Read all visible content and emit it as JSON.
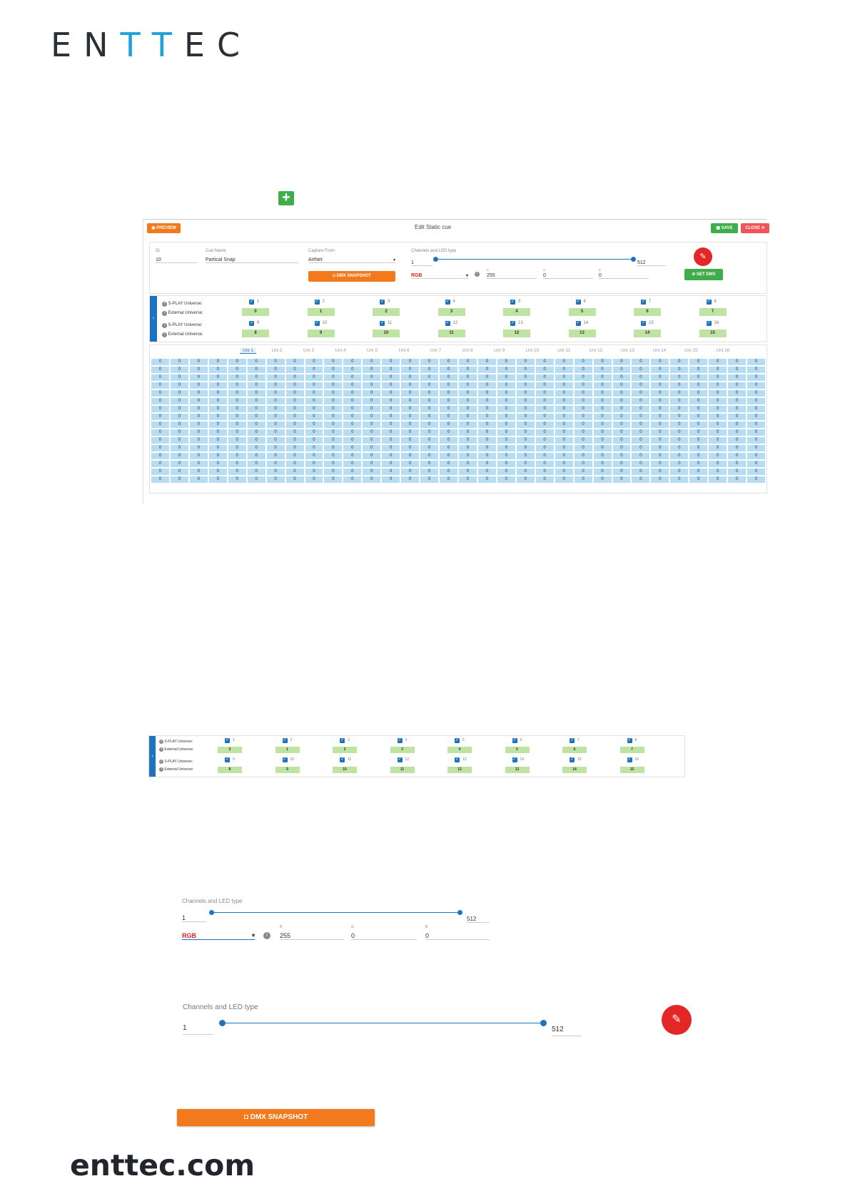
{
  "brand": {
    "logo_pre": "EN",
    "logo_mid": "TT",
    "logo_post": "EC",
    "footer": "enttec.com"
  },
  "add_button": {
    "icon": "plus-icon",
    "symbol": "+"
  },
  "editor": {
    "title": "Edit Static cue",
    "preview_label": "PREVIEW",
    "save_label": "SAVE",
    "close_label": "CLOSE",
    "fields": {
      "id_label": "ID",
      "id_value": "10",
      "name_label": "Cue Name",
      "name_value": "Partical Snap",
      "capture_label": "Capture From",
      "capture_value": "ArtNet",
      "channels_label": "Channels and LED type",
      "ch_min": "1",
      "ch_max": "512",
      "led_type": "RGB",
      "r_label": "R",
      "r_value": "255",
      "g_label": "G",
      "g_value": "0",
      "b_label": "B",
      "b_value": "0"
    },
    "snapshot_label": "DMX SNAPSHOT",
    "set_dmx_label": "SET DMX",
    "universe": {
      "splay_label": "S-PLAY Universe:",
      "external_label": "External Universe:",
      "checks_row1": [
        "1",
        "2",
        "3",
        "4",
        "5",
        "6",
        "7",
        "8"
      ],
      "ext_row1": [
        "0",
        "1",
        "2",
        "3",
        "4",
        "5",
        "6",
        "7"
      ],
      "checks_row2": [
        "9",
        "10",
        "11",
        "12",
        "13",
        "14",
        "15",
        "16"
      ],
      "ext_row2": [
        "8",
        "9",
        "10",
        "11",
        "12",
        "13",
        "14",
        "15"
      ]
    },
    "tabs": [
      "Uni 1",
      "Uni 2",
      "Uni 3",
      "Uni 4",
      "Uni 5",
      "Uni 6",
      "Uni 7",
      "Uni 8",
      "Uni 9",
      "Uni 10",
      "Uni 11",
      "Uni 12",
      "Uni 13",
      "Uni 14",
      "Uni 15",
      "Uni 16"
    ],
    "cell_value": "0"
  },
  "universe_zoom": {
    "splay_label": "S-PLAY Universe:",
    "external_label": "External Universe:",
    "checks_row1": [
      "1",
      "2",
      "3",
      "4",
      "5",
      "6",
      "7",
      "8"
    ],
    "ext_row1": [
      "0",
      "1",
      "2",
      "3",
      "4",
      "5",
      "6",
      "7"
    ],
    "checks_row2": [
      "9",
      "10",
      "11",
      "12",
      "13",
      "14",
      "15",
      "16"
    ],
    "ext_row2": [
      "8",
      "9",
      "10",
      "11",
      "12",
      "13",
      "14",
      "15"
    ]
  },
  "channels_zoom": {
    "label": "Channels and LED type",
    "ch_min": "1",
    "ch_max": "512",
    "led_type": "RGB",
    "r_label": "R",
    "r_value": "255",
    "g_label": "G",
    "g_value": "0",
    "b_label": "B",
    "b_value": "0"
  },
  "channels_zoom2": {
    "label": "Channels and LED type",
    "ch_min": "1",
    "ch_max": "512"
  },
  "snapshot_zoom": {
    "label": "DMX SNAPSHOT",
    "icon": "camera-icon"
  },
  "colors": {
    "accent_blue": "#1e73be",
    "orange": "#f37a1c",
    "green": "#3fae4a",
    "red": "#e32626",
    "cell_blue": "#b7ddf5",
    "chip_green": "#bfe3a2"
  }
}
